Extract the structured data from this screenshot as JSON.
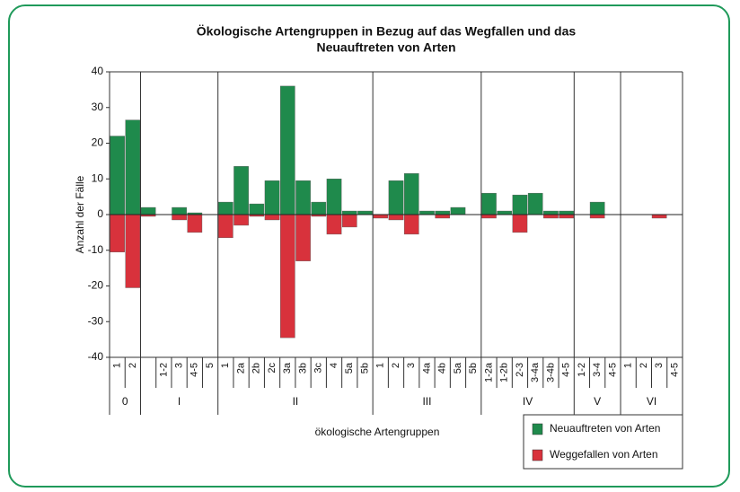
{
  "chart_data": {
    "type": "bar",
    "title": "Ökologische Artengruppen in Bezug auf das Wegfallen und das",
    "subtitle": "Neuauftreten von Arten",
    "y_label": "Anzahl der Fälle",
    "x_label": "ökologische Artengruppen",
    "groups": [
      {
        "label": "0",
        "categories": [
          "1",
          "2"
        ]
      },
      {
        "label": "I",
        "categories": [
          null,
          "1-2",
          "3",
          "4-5",
          "5"
        ]
      },
      {
        "label": "II",
        "categories": [
          "1",
          "2a",
          "2b",
          "2c",
          "3a",
          "3b",
          "3c",
          "4",
          "5a",
          "5b"
        ]
      },
      {
        "label": "III",
        "categories": [
          "1",
          "2",
          "3",
          "4a",
          "4b",
          "5a",
          "5b"
        ]
      },
      {
        "label": "IV",
        "categories": [
          "1-2a",
          "1-2b",
          "2-3",
          "3-4a",
          "3-4b",
          "4-5"
        ]
      },
      {
        "label": "V",
        "categories": [
          "1-2",
          "3-4",
          "4-5"
        ]
      },
      {
        "label": "VI",
        "categories": [
          "1",
          "2",
          "3",
          "4-5"
        ]
      }
    ],
    "series": [
      {
        "name": "Weggefallen von Arten",
        "color": "#d8323c",
        "values": [
          -10.5,
          -20.5,
          -0.5,
          0,
          -1.5,
          -5,
          0,
          -6.5,
          -3,
          -0.5,
          -1.5,
          -34.5,
          -13,
          -0.5,
          -5.5,
          -3.5,
          0,
          -1,
          -1.5,
          -5.5,
          0,
          -1,
          0,
          0,
          -1,
          0,
          -5,
          0,
          -1,
          -1,
          0,
          -1,
          0,
          0,
          0,
          -1,
          0
        ]
      },
      {
        "name": "Neuauftreten von Arten",
        "color": "#1f8a4c",
        "values": [
          22,
          26.5,
          2,
          0,
          2,
          0.5,
          0,
          3.5,
          13.5,
          3,
          9.5,
          36,
          9.5,
          3.5,
          10,
          1,
          1,
          0,
          9.5,
          11.5,
          1,
          1,
          2,
          0,
          6,
          1,
          5.5,
          6,
          1,
          1,
          0,
          3.5,
          0,
          0,
          0,
          0,
          0
        ]
      }
    ],
    "ylim": [
      -40,
      40
    ],
    "yticks": [
      -40,
      -30,
      -20,
      -10,
      0,
      10,
      20,
      30,
      40
    ]
  }
}
